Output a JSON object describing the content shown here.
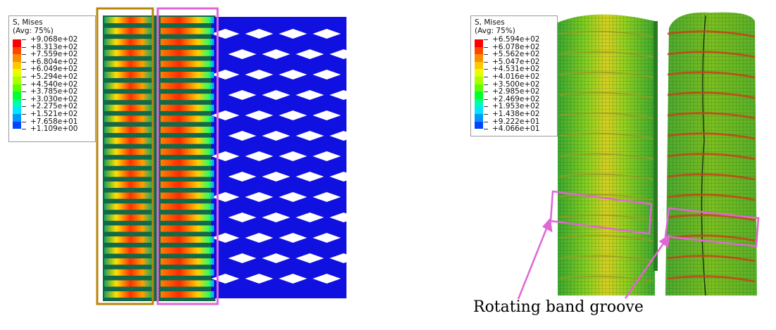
{
  "left_panel": {
    "legend": {
      "title": "S, Mises",
      "subtitle": "(Avg: 75%)",
      "values": [
        "+9.068e+02",
        "+8.313e+02",
        "+7.559e+02",
        "+6.804e+02",
        "+6.049e+02",
        "+5.294e+02",
        "+4.540e+02",
        "+3.785e+02",
        "+3.030e+02",
        "+2.275e+02",
        "+1.521e+02",
        "+7.658e+01",
        "+1.109e+00"
      ]
    },
    "highlight_colors": {
      "first_box": "#b8860b",
      "second_box": "#e066d6"
    }
  },
  "right_panel": {
    "legend": {
      "title": "S, Mises",
      "subtitle": "(Avg: 75%)",
      "values": [
        "+6.594e+02",
        "+6.078e+02",
        "+5.562e+02",
        "+5.047e+02",
        "+4.531e+02",
        "+4.016e+02",
        "+3.500e+02",
        "+2.985e+02",
        "+2.469e+02",
        "+1.953e+02",
        "+1.438e+02",
        "+9.222e+01",
        "+4.066e+01"
      ]
    },
    "annotation": {
      "label": "Rotating band groove",
      "color": "#e066d6"
    }
  },
  "legend_colors": [
    "#ff0000",
    "#ff4500",
    "#ff8c00",
    "#ffc800",
    "#e6ff00",
    "#a8ff00",
    "#5cff00",
    "#00ff30",
    "#00ffa0",
    "#00e6ff",
    "#0096ff",
    "#0046ff",
    "#0000ff"
  ]
}
